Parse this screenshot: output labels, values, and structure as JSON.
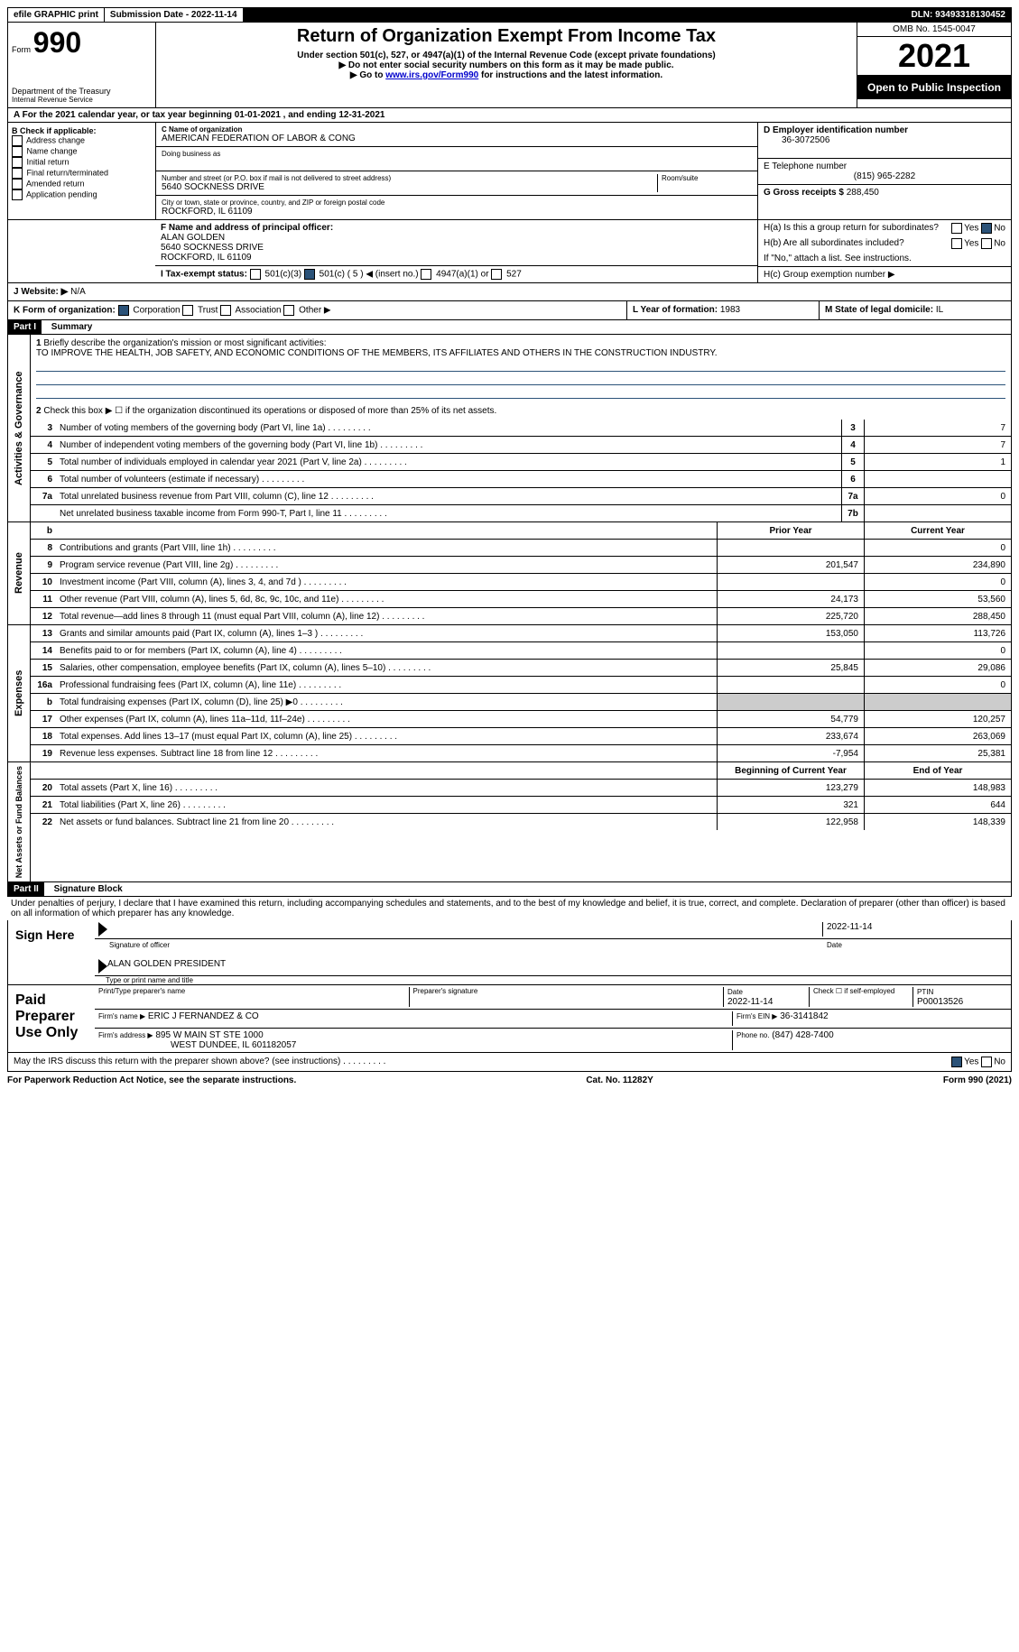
{
  "top": {
    "efile": "efile GRAPHIC print",
    "submission": "Submission Date - 2022-11-14",
    "dln": "DLN: 93493318130452"
  },
  "header": {
    "form_word": "Form",
    "form_num": "990",
    "dept1": "Department of the Treasury",
    "dept2": "Internal Revenue Service",
    "title": "Return of Organization Exempt From Income Tax",
    "sub1": "Under section 501(c), 527, or 4947(a)(1) of the Internal Revenue Code (except private foundations)",
    "sub2": "▶ Do not enter social security numbers on this form as it may be made public.",
    "sub3_pre": "▶ Go to ",
    "sub3_link": "www.irs.gov/Form990",
    "sub3_post": " for instructions and the latest information.",
    "omb": "OMB No. 1545-0047",
    "year": "2021",
    "public": "Open to Public Inspection"
  },
  "A": {
    "line": "A For the 2021 calendar year, or tax year beginning 01-01-2021   , and ending 12-31-2021"
  },
  "B": {
    "header": "B Check if applicable:",
    "addr_change": "Address change",
    "name_change": "Name change",
    "initial": "Initial return",
    "final": "Final return/terminated",
    "amended": "Amended return",
    "app_pending": "Application pending"
  },
  "C": {
    "name_label": "C Name of organization",
    "name": "AMERICAN FEDERATION OF LABOR & CONG",
    "dba_label": "Doing business as",
    "street_label": "Number and street (or P.O. box if mail is not delivered to street address)",
    "room_label": "Room/suite",
    "street": "5640 SOCKNESS DRIVE",
    "city_label": "City or town, state or province, country, and ZIP or foreign postal code",
    "city": "ROCKFORD, IL  61109"
  },
  "D": {
    "label": "D Employer identification number",
    "value": "36-3072506"
  },
  "E": {
    "label": "E Telephone number",
    "value": "(815) 965-2282"
  },
  "G": {
    "label": "G Gross receipts $",
    "value": "288,450"
  },
  "F": {
    "label": "F Name and address of principal officer:",
    "name": "ALAN GOLDEN",
    "street": "5640 SOCKNESS DRIVE",
    "city": "ROCKFORD, IL  61109"
  },
  "H": {
    "a": "H(a)  Is this a group return for subordinates?",
    "b": "H(b)  Are all subordinates included?",
    "note": "If \"No,\" attach a list. See instructions.",
    "c": "H(c)  Group exemption number ▶"
  },
  "I": {
    "label": "I  Tax-exempt status:",
    "opt1": "501(c)(3)",
    "opt2": "501(c) ( 5 ) ◀ (insert no.)",
    "opt3": "4947(a)(1) or",
    "opt4": "527"
  },
  "J": {
    "label": "J  Website: ▶",
    "value": "N/A"
  },
  "K": {
    "label": "K Form of organization:",
    "corp": "Corporation",
    "trust": "Trust",
    "assoc": "Association",
    "other": "Other ▶"
  },
  "L": {
    "label": "L Year of formation:",
    "value": "1983"
  },
  "M": {
    "label": "M State of legal domicile:",
    "value": "IL"
  },
  "partI": {
    "label": "Part I",
    "title": "Summary",
    "q1": "Briefly describe the organization's mission or most significant activities:",
    "mission": "TO IMPROVE THE HEALTH, JOB SAFETY, AND ECONOMIC CONDITIONS OF THE MEMBERS, ITS AFFILIATES AND OTHERS IN THE CONSTRUCTION INDUSTRY.",
    "q2": "Check this box ▶ ☐ if the organization discontinued its operations or disposed of more than 25% of its net assets.",
    "rows_gov": [
      {
        "n": "3",
        "d": "Number of voting members of the governing body (Part VI, line 1a)",
        "b": "3",
        "v": "7"
      },
      {
        "n": "4",
        "d": "Number of independent voting members of the governing body (Part VI, line 1b)",
        "b": "4",
        "v": "7"
      },
      {
        "n": "5",
        "d": "Total number of individuals employed in calendar year 2021 (Part V, line 2a)",
        "b": "5",
        "v": "1"
      },
      {
        "n": "6",
        "d": "Total number of volunteers (estimate if necessary)",
        "b": "6",
        "v": ""
      },
      {
        "n": "7a",
        "d": "Total unrelated business revenue from Part VIII, column (C), line 12",
        "b": "7a",
        "v": "0"
      },
      {
        "n": "",
        "d": "Net unrelated business taxable income from Form 990-T, Part I, line 11",
        "b": "7b",
        "v": ""
      }
    ],
    "prior_hdr": "Prior Year",
    "curr_hdr": "Current Year",
    "rows_rev": [
      {
        "n": "8",
        "d": "Contributions and grants (Part VIII, line 1h)",
        "p": "",
        "c": "0"
      },
      {
        "n": "9",
        "d": "Program service revenue (Part VIII, line 2g)",
        "p": "201,547",
        "c": "234,890"
      },
      {
        "n": "10",
        "d": "Investment income (Part VIII, column (A), lines 3, 4, and 7d )",
        "p": "",
        "c": "0"
      },
      {
        "n": "11",
        "d": "Other revenue (Part VIII, column (A), lines 5, 6d, 8c, 9c, 10c, and 11e)",
        "p": "24,173",
        "c": "53,560"
      },
      {
        "n": "12",
        "d": "Total revenue—add lines 8 through 11 (must equal Part VIII, column (A), line 12)",
        "p": "225,720",
        "c": "288,450"
      }
    ],
    "rows_exp": [
      {
        "n": "13",
        "d": "Grants and similar amounts paid (Part IX, column (A), lines 1–3 )",
        "p": "153,050",
        "c": "113,726"
      },
      {
        "n": "14",
        "d": "Benefits paid to or for members (Part IX, column (A), line 4)",
        "p": "",
        "c": "0"
      },
      {
        "n": "15",
        "d": "Salaries, other compensation, employee benefits (Part IX, column (A), lines 5–10)",
        "p": "25,845",
        "c": "29,086"
      },
      {
        "n": "16a",
        "d": "Professional fundraising fees (Part IX, column (A), line 11e)",
        "p": "",
        "c": "0"
      },
      {
        "n": "b",
        "d": "Total fundraising expenses (Part IX, column (D), line 25) ▶0",
        "p": "SHADED",
        "c": "SHADED"
      },
      {
        "n": "17",
        "d": "Other expenses (Part IX, column (A), lines 11a–11d, 11f–24e)",
        "p": "54,779",
        "c": "120,257"
      },
      {
        "n": "18",
        "d": "Total expenses. Add lines 13–17 (must equal Part IX, column (A), line 25)",
        "p": "233,674",
        "c": "263,069"
      },
      {
        "n": "19",
        "d": "Revenue less expenses. Subtract line 18 from line 12",
        "p": "-7,954",
        "c": "25,381"
      }
    ],
    "beg_hdr": "Beginning of Current Year",
    "end_hdr": "End of Year",
    "rows_net": [
      {
        "n": "20",
        "d": "Total assets (Part X, line 16)",
        "p": "123,279",
        "c": "148,983"
      },
      {
        "n": "21",
        "d": "Total liabilities (Part X, line 26)",
        "p": "321",
        "c": "644"
      },
      {
        "n": "22",
        "d": "Net assets or fund balances. Subtract line 21 from line 20",
        "p": "122,958",
        "c": "148,339"
      }
    ],
    "vert_gov": "Activities & Governance",
    "vert_rev": "Revenue",
    "vert_exp": "Expenses",
    "vert_net": "Net Assets or Fund Balances"
  },
  "partII": {
    "label": "Part II",
    "title": "Signature Block",
    "decl": "Under penalties of perjury, I declare that I have examined this return, including accompanying schedules and statements, and to the best of my knowledge and belief, it is true, correct, and complete. Declaration of preparer (other than officer) is based on all information of which preparer has any knowledge.",
    "sign_here": "Sign Here",
    "sig_officer": "Signature of officer",
    "sig_date": "2022-11-14",
    "date_lbl": "Date",
    "officer_name": "ALAN GOLDEN  PRESIDENT",
    "officer_lbl": "Type or print name and title",
    "paid": "Paid Preparer Use Only",
    "prep_name_lbl": "Print/Type preparer's name",
    "prep_sig_lbl": "Preparer's signature",
    "prep_date_lbl": "Date",
    "prep_date": "2022-11-14",
    "self_emp": "Check ☐ if self-employed",
    "ptin_lbl": "PTIN",
    "ptin": "P00013526",
    "firm_name_lbl": "Firm's name    ▶",
    "firm_name": "ERIC J FERNANDEZ & CO",
    "firm_ein_lbl": "Firm's EIN ▶",
    "firm_ein": "36-3141842",
    "firm_addr_lbl": "Firm's address ▶",
    "firm_addr1": "895 W MAIN ST STE 1000",
    "firm_addr2": "WEST DUNDEE, IL  601182057",
    "firm_phone_lbl": "Phone no.",
    "firm_phone": "(847) 428-7400",
    "discuss": "May the IRS discuss this return with the preparer shown above? (see instructions)",
    "yes": "Yes",
    "no": "No"
  },
  "footer": {
    "pra": "For Paperwork Reduction Act Notice, see the separate instructions.",
    "cat": "Cat. No. 11282Y",
    "form": "Form 990 (2021)"
  }
}
